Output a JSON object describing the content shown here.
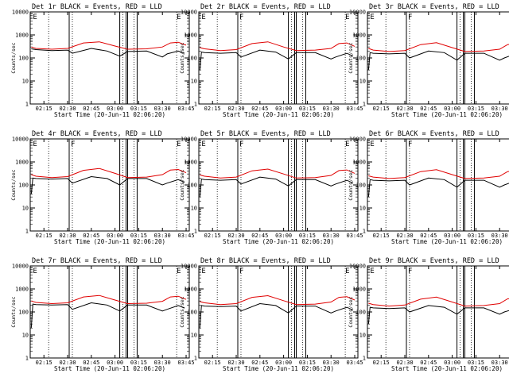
{
  "figure": {
    "xlabel": "Start Time (20-Jun-11 02:06:20)",
    "ylabel": "Counts/sec",
    "xticks": [
      "02:15",
      "02:30",
      "02:45",
      "03:00",
      "03:15",
      "03:30",
      "03:45"
    ],
    "yticks": [
      "1",
      "10",
      "100",
      "1000",
      "10000"
    ],
    "colors": {
      "events": "#000000",
      "lld": "#e00000",
      "axes": "#000000"
    }
  },
  "chart_data": [
    {
      "type": "line",
      "title": "Det 1r BLACK = Events, RED = LLD",
      "xlim": [
        "02:06:20",
        "03:47:00"
      ],
      "ylim": [
        1,
        10000
      ],
      "yscale": "log",
      "marker_lines": [
        "02:18",
        "02:33",
        "03:05",
        "03:12",
        "03:39"
      ],
      "solid_lines": [
        "02:31",
        "03:03",
        "03:07",
        "03:08",
        "03:14"
      ],
      "flags": [
        {
          "x": "02:07",
          "label": "E"
        },
        {
          "x": "03:38",
          "label": "E"
        }
      ],
      "series": [
        {
          "name": "Events",
          "x": [
            "02:07",
            "02:10",
            "02:20",
            "02:30",
            "02:33",
            "02:45",
            "02:55",
            "03:03",
            "03:08",
            "03:20",
            "03:30",
            "03:33",
            "03:40",
            "03:44"
          ],
          "values": [
            250,
            230,
            210,
            220,
            160,
            260,
            200,
            120,
            190,
            200,
            110,
            150,
            200,
            160
          ]
        },
        {
          "name": "LLD",
          "x": [
            "02:07",
            "02:10",
            "02:20",
            "02:30",
            "02:40",
            "02:50",
            "03:00",
            "03:08",
            "03:20",
            "03:30",
            "03:35",
            "03:40",
            "03:45"
          ],
          "values": [
            300,
            260,
            240,
            260,
            450,
            500,
            330,
            240,
            250,
            300,
            450,
            480,
            360
          ]
        }
      ]
    },
    {
      "type": "line",
      "title": "Det 2r BLACK = Events, RED = LLD",
      "xlim": [
        "02:06:20",
        "03:47:00"
      ],
      "ylim": [
        1,
        10000
      ],
      "yscale": "log",
      "marker_lines": [
        "02:18",
        "02:33",
        "03:05",
        "03:12",
        "03:39"
      ],
      "solid_lines": [
        "02:31",
        "03:03",
        "03:07",
        "03:08",
        "03:14"
      ],
      "flags": [
        {
          "x": "02:07",
          "label": "E"
        },
        {
          "x": "02:31",
          "label": "F"
        },
        {
          "x": "03:38",
          "label": "E"
        }
      ],
      "series": [
        {
          "name": "Events",
          "x": [
            "02:07",
            "02:08",
            "02:10",
            "02:20",
            "02:30",
            "02:33",
            "02:45",
            "02:55",
            "03:03",
            "03:08",
            "03:20",
            "03:30",
            "03:33",
            "03:40",
            "03:44"
          ],
          "values": [
            30,
            180,
            170,
            160,
            170,
            110,
            220,
            180,
            90,
            170,
            170,
            90,
            110,
            160,
            120
          ]
        },
        {
          "name": "LLD",
          "x": [
            "02:07",
            "02:10",
            "02:20",
            "02:30",
            "02:40",
            "02:50",
            "03:00",
            "03:08",
            "03:20",
            "03:30",
            "03:35",
            "03:40",
            "03:45"
          ],
          "values": [
            280,
            250,
            210,
            230,
            420,
            500,
            300,
            210,
            220,
            260,
            420,
            450,
            320
          ]
        }
      ]
    },
    {
      "type": "line",
      "title": "Det 3r BLACK = Events, RED = LLD",
      "xlim": [
        "02:06:20",
        "03:47:00"
      ],
      "ylim": [
        1,
        10000
      ],
      "yscale": "log",
      "marker_lines": [
        "02:18",
        "02:33",
        "03:05",
        "03:12",
        "03:39"
      ],
      "solid_lines": [
        "02:31",
        "03:03",
        "03:07",
        "03:08",
        "03:14"
      ],
      "flags": [
        {
          "x": "02:07",
          "label": "E"
        },
        {
          "x": "02:31",
          "label": "F"
        },
        {
          "x": "03:38",
          "label": "E"
        }
      ],
      "series": [
        {
          "name": "Events",
          "x": [
            "02:07",
            "02:08",
            "02:10",
            "02:20",
            "02:30",
            "02:33",
            "02:45",
            "02:55",
            "03:03",
            "03:08",
            "03:20",
            "03:30",
            "03:33",
            "03:40",
            "03:44"
          ],
          "values": [
            30,
            170,
            160,
            150,
            160,
            100,
            200,
            170,
            80,
            160,
            160,
            80,
            100,
            150,
            110
          ]
        },
        {
          "name": "LLD",
          "x": [
            "02:07",
            "02:10",
            "02:20",
            "02:30",
            "02:40",
            "02:50",
            "03:00",
            "03:08",
            "03:20",
            "03:30",
            "03:35",
            "03:40",
            "03:45"
          ],
          "values": [
            260,
            220,
            190,
            210,
            380,
            460,
            280,
            190,
            200,
            240,
            380,
            410,
            290
          ]
        }
      ]
    },
    {
      "type": "line",
      "title": "Det 4r BLACK = Events, RED = LLD",
      "xlim": [
        "02:06:20",
        "03:47:00"
      ],
      "ylim": [
        1,
        10000
      ],
      "yscale": "log",
      "marker_lines": [
        "02:18",
        "02:33",
        "03:05",
        "03:12",
        "03:39"
      ],
      "solid_lines": [
        "02:31",
        "03:03",
        "03:07",
        "03:08",
        "03:14"
      ],
      "flags": [
        {
          "x": "02:07",
          "label": "E"
        },
        {
          "x": "02:31",
          "label": "F"
        },
        {
          "x": "03:38",
          "label": "E"
        }
      ],
      "series": [
        {
          "name": "Events",
          "x": [
            "02:07",
            "02:08",
            "02:10",
            "02:20",
            "02:30",
            "02:33",
            "02:45",
            "02:55",
            "03:03",
            "03:08",
            "03:20",
            "03:30",
            "03:33",
            "03:40",
            "03:44"
          ],
          "values": [
            40,
            200,
            190,
            180,
            190,
            120,
            230,
            190,
            100,
            190,
            190,
            100,
            120,
            170,
            130
          ]
        },
        {
          "name": "LLD",
          "x": [
            "02:07",
            "02:10",
            "02:20",
            "02:30",
            "02:40",
            "02:50",
            "03:00",
            "03:08",
            "03:20",
            "03:30",
            "03:35",
            "03:40",
            "03:45"
          ],
          "values": [
            280,
            240,
            210,
            230,
            430,
            520,
            320,
            210,
            220,
            280,
            440,
            470,
            340
          ]
        }
      ]
    },
    {
      "type": "line",
      "title": "Det 5r BLACK = Events, RED = LLD",
      "xlim": [
        "02:06:20",
        "03:47:00"
      ],
      "ylim": [
        1,
        10000
      ],
      "yscale": "log",
      "marker_lines": [
        "02:18",
        "02:33",
        "03:05",
        "03:12",
        "03:39"
      ],
      "solid_lines": [
        "02:31",
        "03:03",
        "03:07",
        "03:08",
        "03:14"
      ],
      "flags": [
        {
          "x": "02:07",
          "label": "E"
        },
        {
          "x": "02:31",
          "label": "F"
        },
        {
          "x": "03:38",
          "label": "E"
        }
      ],
      "series": [
        {
          "name": "Events",
          "x": [
            "02:07",
            "02:08",
            "02:10",
            "02:20",
            "02:30",
            "02:33",
            "02:45",
            "02:55",
            "03:03",
            "03:08",
            "03:20",
            "03:30",
            "03:33",
            "03:40",
            "03:44"
          ],
          "values": [
            30,
            180,
            170,
            160,
            170,
            110,
            220,
            180,
            90,
            170,
            170,
            90,
            110,
            160,
            120
          ]
        },
        {
          "name": "LLD",
          "x": [
            "02:07",
            "02:10",
            "02:20",
            "02:30",
            "02:40",
            "02:50",
            "03:00",
            "03:08",
            "03:20",
            "03:30",
            "03:35",
            "03:40",
            "03:45"
          ],
          "values": [
            270,
            240,
            200,
            220,
            410,
            490,
            300,
            200,
            210,
            260,
            420,
            450,
            320
          ]
        }
      ]
    },
    {
      "type": "line",
      "title": "Det 6r BLACK = Events, RED = LLD",
      "xlim": [
        "02:06:20",
        "03:47:00"
      ],
      "ylim": [
        1,
        10000
      ],
      "yscale": "log",
      "marker_lines": [
        "02:18",
        "02:33",
        "03:05",
        "03:12",
        "03:39"
      ],
      "solid_lines": [
        "02:31",
        "03:03",
        "03:07",
        "03:08",
        "03:14"
      ],
      "flags": [
        {
          "x": "02:07",
          "label": "E"
        },
        {
          "x": "02:31",
          "label": "F"
        },
        {
          "x": "03:38",
          "label": "E"
        }
      ],
      "series": [
        {
          "name": "Events",
          "x": [
            "02:07",
            "02:08",
            "02:10",
            "02:20",
            "02:30",
            "02:33",
            "02:45",
            "02:55",
            "03:03",
            "03:08",
            "03:20",
            "03:30",
            "03:33",
            "03:40",
            "03:44"
          ],
          "values": [
            30,
            170,
            160,
            150,
            160,
            100,
            200,
            170,
            80,
            160,
            160,
            80,
            100,
            150,
            110
          ]
        },
        {
          "name": "LLD",
          "x": [
            "02:07",
            "02:10",
            "02:20",
            "02:30",
            "02:40",
            "02:50",
            "03:00",
            "03:08",
            "03:20",
            "03:30",
            "03:35",
            "03:40",
            "03:45"
          ],
          "values": [
            250,
            220,
            190,
            210,
            380,
            460,
            280,
            190,
            200,
            240,
            380,
            410,
            290
          ]
        }
      ]
    },
    {
      "type": "line",
      "title": "Det 7r BLACK = Events, RED = LLD",
      "xlim": [
        "02:06:20",
        "03:47:00"
      ],
      "ylim": [
        1,
        10000
      ],
      "yscale": "log",
      "marker_lines": [
        "02:18",
        "02:33",
        "03:05",
        "03:12",
        "03:39"
      ],
      "solid_lines": [
        "02:31",
        "03:03",
        "03:07",
        "03:08",
        "03:14"
      ],
      "flags": [
        {
          "x": "02:07",
          "label": "E"
        },
        {
          "x": "03:38",
          "label": "E"
        }
      ],
      "series": [
        {
          "name": "Events",
          "x": [
            "02:07",
            "02:08",
            "02:10",
            "02:20",
            "02:30",
            "02:33",
            "02:45",
            "02:55",
            "03:03",
            "03:08",
            "03:20",
            "03:30",
            "03:33",
            "03:40",
            "03:44"
          ],
          "values": [
            20,
            220,
            210,
            200,
            210,
            130,
            250,
            200,
            110,
            200,
            200,
            110,
            130,
            190,
            150
          ]
        },
        {
          "name": "LLD",
          "x": [
            "02:07",
            "02:10",
            "02:20",
            "02:30",
            "02:40",
            "02:50",
            "03:00",
            "03:08",
            "03:20",
            "03:30",
            "03:35",
            "03:40",
            "03:45"
          ],
          "values": [
            300,
            260,
            230,
            250,
            450,
            520,
            330,
            230,
            240,
            290,
            450,
            480,
            350
          ]
        }
      ]
    },
    {
      "type": "line",
      "title": "Det 8r BLACK = Events, RED = LLD",
      "xlim": [
        "02:06:20",
        "03:47:00"
      ],
      "ylim": [
        1,
        10000
      ],
      "yscale": "log",
      "marker_lines": [
        "02:18",
        "02:33",
        "03:05",
        "03:12",
        "03:39"
      ],
      "solid_lines": [
        "02:31",
        "03:03",
        "03:07",
        "03:08",
        "03:14"
      ],
      "flags": [
        {
          "x": "02:07",
          "label": "E"
        },
        {
          "x": "02:31",
          "label": "F"
        },
        {
          "x": "03:38",
          "label": "E"
        }
      ],
      "series": [
        {
          "name": "Events",
          "x": [
            "02:07",
            "02:08",
            "02:10",
            "02:20",
            "02:30",
            "02:33",
            "02:45",
            "02:55",
            "03:03",
            "03:08",
            "03:20",
            "03:30",
            "03:33",
            "03:40",
            "03:44"
          ],
          "values": [
            20,
            190,
            180,
            170,
            180,
            110,
            230,
            190,
            90,
            180,
            180,
            90,
            110,
            160,
            120
          ]
        },
        {
          "name": "LLD",
          "x": [
            "02:07",
            "02:10",
            "02:20",
            "02:30",
            "02:40",
            "02:50",
            "03:00",
            "03:08",
            "03:20",
            "03:30",
            "03:35",
            "03:40",
            "03:45"
          ],
          "values": [
            280,
            250,
            210,
            230,
            430,
            510,
            310,
            210,
            220,
            270,
            430,
            460,
            330
          ]
        }
      ]
    },
    {
      "type": "line",
      "title": "Det 9r BLACK = Events, RED = LLD",
      "xlim": [
        "02:06:20",
        "03:47:00"
      ],
      "ylim": [
        1,
        10000
      ],
      "yscale": "log",
      "marker_lines": [
        "02:18",
        "02:33",
        "03:05",
        "03:12",
        "03:39"
      ],
      "solid_lines": [
        "02:31",
        "03:03",
        "03:07",
        "03:08",
        "03:14"
      ],
      "flags": [
        {
          "x": "02:07",
          "label": "E"
        },
        {
          "x": "02:31",
          "label": "F"
        },
        {
          "x": "03:38",
          "label": "E"
        }
      ],
      "series": [
        {
          "name": "Events",
          "x": [
            "02:07",
            "02:08",
            "02:10",
            "02:20",
            "02:30",
            "02:33",
            "02:45",
            "02:55",
            "03:03",
            "03:08",
            "03:20",
            "03:30",
            "03:33",
            "03:40",
            "03:44"
          ],
          "values": [
            30,
            160,
            150,
            140,
            150,
            100,
            190,
            160,
            80,
            150,
            150,
            80,
            100,
            140,
            110
          ]
        },
        {
          "name": "LLD",
          "x": [
            "02:07",
            "02:10",
            "02:20",
            "02:30",
            "02:40",
            "02:50",
            "03:00",
            "03:08",
            "03:20",
            "03:30",
            "03:35",
            "03:40",
            "03:45"
          ],
          "values": [
            240,
            210,
            180,
            200,
            360,
            440,
            270,
            180,
            190,
            230,
            370,
            400,
            280
          ]
        }
      ]
    }
  ]
}
